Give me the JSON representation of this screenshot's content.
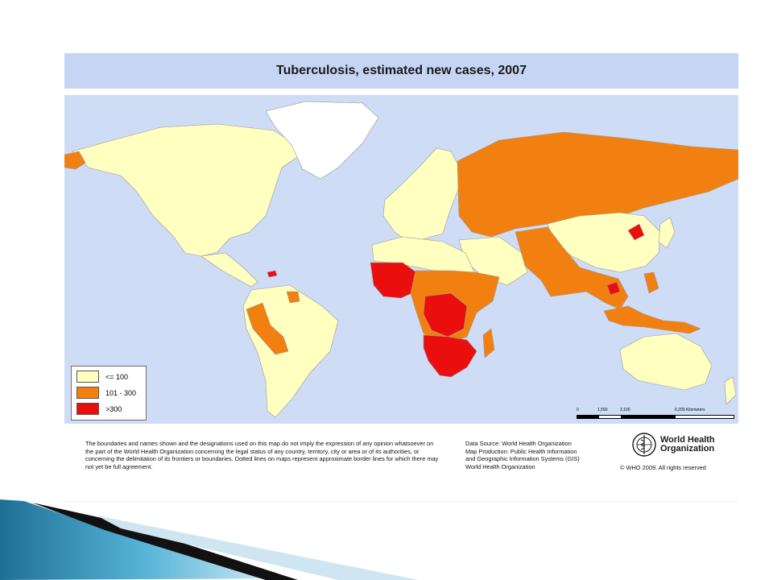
{
  "title": "Tuberculosis, estimated new cases, 2007",
  "legend": [
    {
      "label": "<= 100",
      "color": "#ffffc0"
    },
    {
      "label": "101 - 300",
      "color": "#f28010"
    },
    {
      "label": ">300",
      "color": "#ea0e0e"
    }
  ],
  "scale": {
    "ticks": [
      "0",
      "1,550",
      "3,100",
      "6,200 Kilometers"
    ]
  },
  "disclaimer": "The boundaries and names shown and the designations used on this map do not imply the expression of any opinion whatsoever on the part of the World Health Organization concerning the legal status of any country, territory, city or area or of its authorities, or concerning the delimitation of its frontiers or boundaries. Dotted lines on maps represent approximate border lines for which there may not yet be full agreement.",
  "source_lines": [
    "Data Source: World Health Organization",
    "Map Production: Public Health Information",
    "and Geographic Information Systems (GIS)",
    "World Health Organization"
  ],
  "logo": {
    "line1": "World Health",
    "line2": "Organization"
  },
  "copyright": "© WHO 2009. All rights reserved",
  "colors": {
    "low": "#ffffc0",
    "medium": "#f28010",
    "high": "#ea0e0e",
    "ocean": "#cfdcf5",
    "greenland": "#ffffff",
    "title_bar": "#c5d6f5"
  }
}
